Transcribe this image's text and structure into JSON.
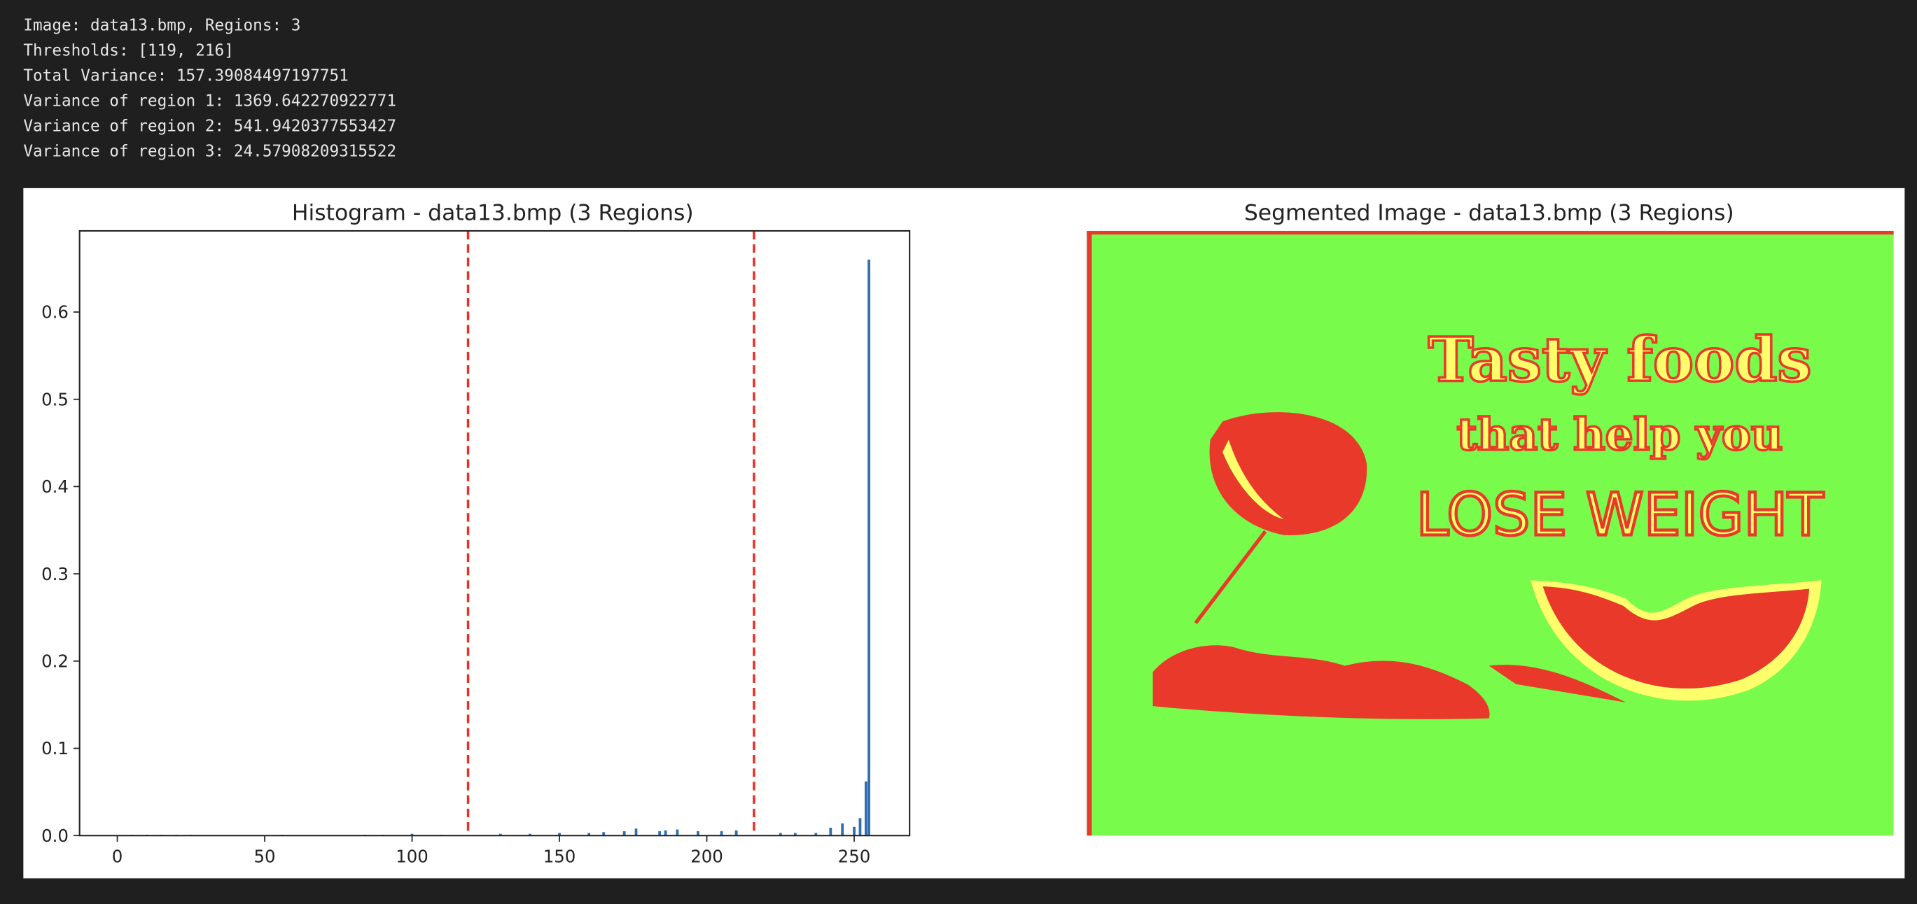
{
  "console": {
    "lines": [
      "Image: data13.bmp, Regions: 3",
      "Thresholds: [119, 216]",
      "Total Variance: 157.39084497197751",
      "Variance of region 1: 1369.642270922771",
      "Variance of region 2: 541.9420377553427",
      "Variance of region 3: 24.57908209315522"
    ]
  },
  "chart_data": {
    "type": "bar",
    "title": "Histogram - data13.bmp (3 Regions)",
    "color": "#2f6fb0",
    "x": [
      5,
      10,
      15,
      20,
      25,
      56,
      84,
      90,
      100,
      110,
      130,
      140,
      150,
      160,
      165,
      172,
      176,
      184,
      186,
      190,
      197,
      205,
      210,
      225,
      230,
      237,
      242,
      246,
      250,
      252,
      254,
      255
    ],
    "values": [
      0.001,
      0.001,
      0.001,
      0.001,
      0.001,
      0.001,
      0.001,
      0.001,
      0.002,
      0.001,
      0.002,
      0.002,
      0.003,
      0.003,
      0.004,
      0.005,
      0.008,
      0.005,
      0.006,
      0.007,
      0.005,
      0.005,
      0.006,
      0.003,
      0.003,
      0.003,
      0.009,
      0.014,
      0.01,
      0.02,
      0.062,
      0.66
    ],
    "thresholds": {
      "values": [
        119,
        216
      ],
      "color": "#e8302a"
    },
    "xlim": [
      -12.8,
      268.8
    ],
    "ylim": [
      0,
      0.693
    ],
    "xticks": [
      0,
      50,
      100,
      150,
      200,
      250
    ],
    "yticks": [
      {
        "value": 0,
        "label": "0.0"
      },
      0.1,
      0.2,
      0.3,
      0.4,
      0.5,
      0.6
    ]
  },
  "segmented_image": {
    "title": "Segmented Image - data13.bmp (3 Regions)",
    "texts": [
      "Tasty foods",
      "that help you",
      "LOSE WEIGHT"
    ]
  }
}
